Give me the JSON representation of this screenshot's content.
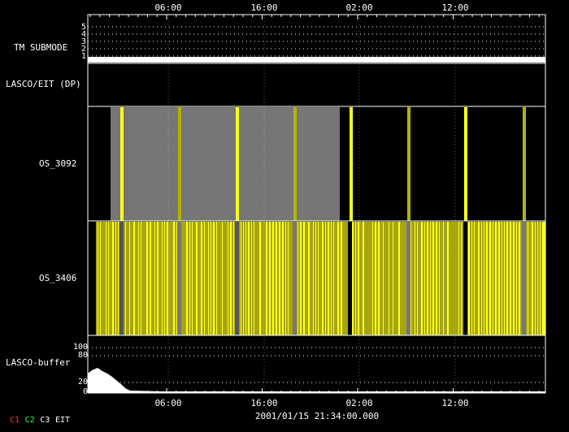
{
  "top_axis": {
    "ticks": [
      "06:00",
      "16:00",
      "02:00",
      "12:00"
    ]
  },
  "bottom_axis": {
    "ticks": [
      "06:00",
      "16:00",
      "02:00",
      "12:00"
    ],
    "date_label": "2001/01/15 21:34:00.000"
  },
  "panels": {
    "tm_submode": {
      "label": "TM SUBMODE",
      "y_ticks": [
        "5",
        "4",
        "3",
        "2",
        "1"
      ]
    },
    "lasco_eit": {
      "label": "LASCO/EIT (DP)"
    },
    "os_3092": {
      "label": "OS_3092"
    },
    "os_3406": {
      "label": "OS_3406"
    },
    "lasco_buffer": {
      "label": "LASCO-buffer",
      "y_ticks": [
        "100",
        "80",
        "20",
        "0"
      ]
    }
  },
  "legend": [
    {
      "label": "C1",
      "color": "#ff3030"
    },
    {
      "label": "C2",
      "color": "#30ff30"
    },
    {
      "label": "C3",
      "color": "#ffffff"
    },
    {
      "label": "EIT",
      "color": "#ffffff"
    }
  ],
  "colors": {
    "yellow": "#ffff20",
    "dark_yellow": "#b4b400",
    "gray": "#767676",
    "white": "#ffffff"
  }
}
